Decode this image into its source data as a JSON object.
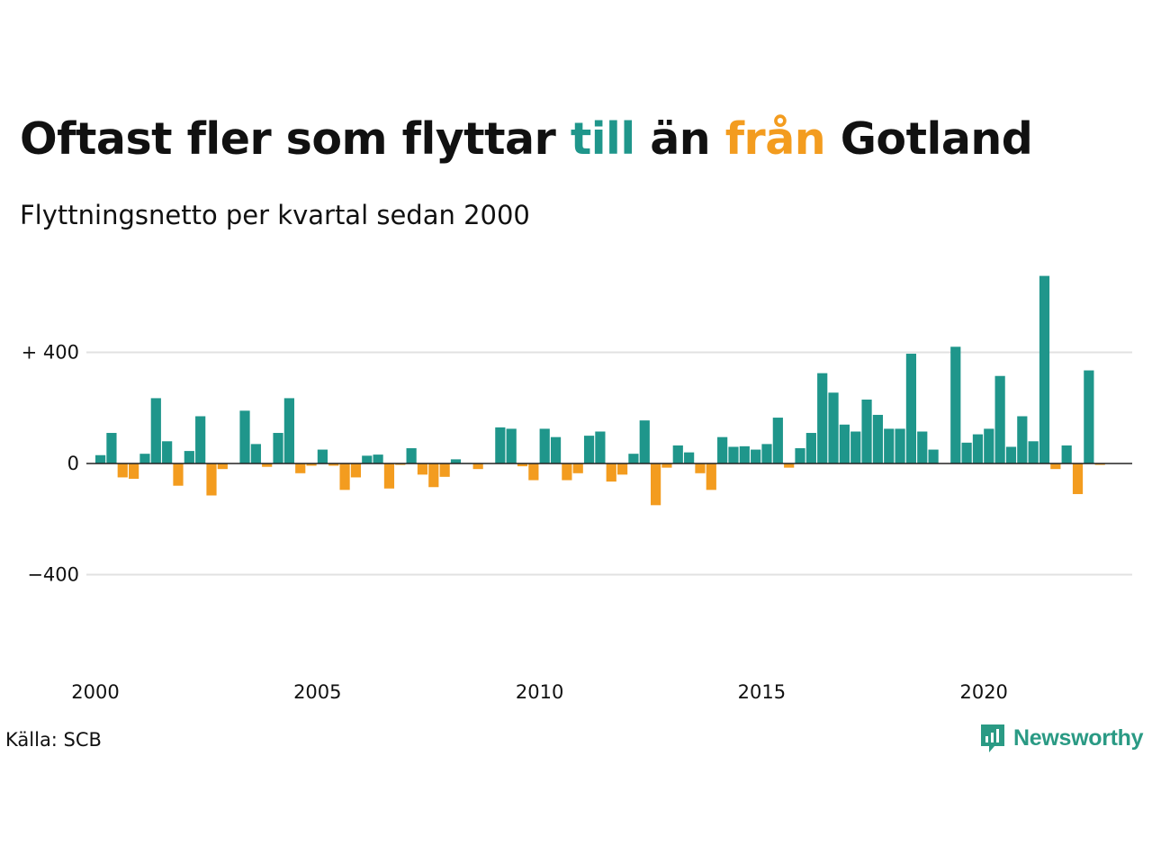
{
  "title": {
    "part1": "Oftast fler som flyttar ",
    "word_till": "till",
    "part2": " än ",
    "word_fran": "från",
    "part3": " Gotland"
  },
  "subtitle": "Flyttningsnetto per kvartal sedan 2000",
  "source": "Källa: SCB",
  "brand": {
    "name": "Newsworthy",
    "icon": "newsworthy-logo-icon"
  },
  "colors": {
    "positive": "#1f968b",
    "negative": "#f39c1f",
    "grid": "#e1e1e1",
    "zero": "#222222"
  },
  "chart_data": {
    "type": "bar",
    "title": "Oftast fler som flyttar till än från Gotland",
    "subtitle": "Flyttningsnetto per kvartal sedan 2000",
    "x_start": 2000,
    "x_labels": [
      "2000",
      "2005",
      "2010",
      "2015",
      "2020"
    ],
    "y_ticks": [
      {
        "value": 400,
        "label": "+ 400"
      },
      {
        "value": 0,
        "label": "0"
      },
      {
        "value": -400,
        "label": "−400"
      }
    ],
    "ylim": [
      -740,
      710
    ],
    "grid": true,
    "series": [
      {
        "values": [
          30,
          110,
          -50,
          -55,
          35,
          235,
          80,
          -80,
          45,
          170,
          -115,
          -20,
          0,
          190,
          70,
          -12,
          110,
          235,
          -35,
          -8,
          50,
          -8,
          -95,
          -50,
          28,
          32,
          -90,
          -5,
          55,
          -40,
          -85,
          -48,
          15,
          2,
          -20,
          0,
          130,
          125,
          -10,
          -60,
          125,
          95,
          -60,
          -35,
          100,
          115,
          -65,
          -40,
          35,
          155,
          -150,
          -15,
          65,
          40,
          -35,
          -95,
          95,
          60,
          62,
          50,
          70,
          165,
          -15,
          55,
          110,
          325,
          255,
          140,
          115,
          230,
          175,
          125,
          125,
          395,
          115,
          50,
          0,
          420,
          75,
          105,
          125,
          315,
          60,
          170,
          80,
          675,
          -20,
          65,
          -110,
          335,
          -5
        ]
      }
    ]
  }
}
